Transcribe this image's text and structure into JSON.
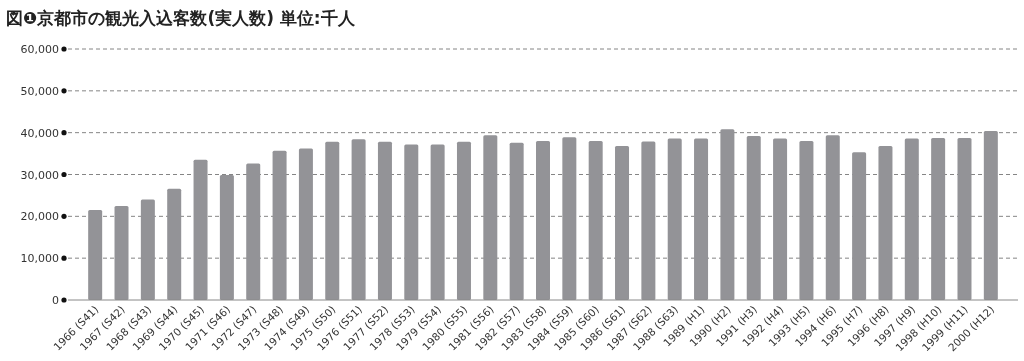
{
  "chart_data": {
    "type": "bar",
    "title": "図❶京都市の観光入込客数(実人数) 単位:千人",
    "categories": [
      "1966 (S41)",
      "1967 (S42)",
      "1968 (S43)",
      "1969 (S44)",
      "1970 (S45)",
      "1971 (S46)",
      "1972 (S47)",
      "1973 (S48)",
      "1974 (S49)",
      "1975 (S50)",
      "1976 (S51)",
      "1977 (S52)",
      "1978 (S53)",
      "1979 (S54)",
      "1980 (S55)",
      "1981 (S56)",
      "1982 (S57)",
      "1983 (S58)",
      "1984 (S59)",
      "1985 (S60)",
      "1986 (S61)",
      "1987 (S62)",
      "1988 (S63)",
      "1989 (H1)",
      "1990 (H2)",
      "1991 (H3)",
      "1992 (H4)",
      "1993 (H5)",
      "1994 (H6)",
      "1995 (H7)",
      "1996 (H8)",
      "1997 (H9)",
      "1998 (H10)",
      "1999 (H11)",
      "2000 (H12)"
    ],
    "values": [
      21500,
      22500,
      24000,
      26600,
      33500,
      29900,
      32600,
      35700,
      36200,
      37800,
      38400,
      37800,
      37200,
      37200,
      37800,
      39400,
      37600,
      38000,
      38900,
      38000,
      36800,
      37900,
      38600,
      38600,
      40800,
      39200,
      38600,
      38000,
      39400,
      35300,
      36800,
      38600,
      38700,
      38700,
      40400
    ],
    "color": "#939397",
    "ylim": [
      0,
      60000
    ],
    "yticks": [
      {
        "value": 0,
        "label": "0"
      },
      {
        "value": 10000,
        "label": "10,000"
      },
      {
        "value": 20000,
        "label": "20,000"
      },
      {
        "value": 30000,
        "label": "30,000"
      },
      {
        "value": 40000,
        "label": "40,000"
      },
      {
        "value": 50000,
        "label": "50,000"
      },
      {
        "value": 60000,
        "label": "60,000"
      }
    ],
    "grid": "y"
  }
}
